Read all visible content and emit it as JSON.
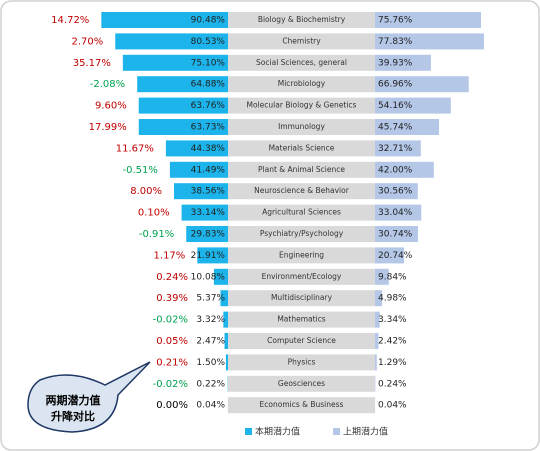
{
  "chart_data": {
    "type": "bar",
    "categories": [
      "Biology & Biochemistry",
      "Chemistry",
      "Social Sciences, general",
      "Microbiology",
      "Molecular Biology & Genetics",
      "Immunology",
      "Materials Science",
      "Plant & Animal Science",
      "Neuroscience & Behavior",
      "Agricultural Sciences",
      "Psychiatry/Psychology",
      "Engineering",
      "Environment/Ecology",
      "Multidisciplinary",
      "Mathematics",
      "Computer Science",
      "Physics",
      "Geosciences",
      "Economics & Business"
    ],
    "series": [
      {
        "name": "本期潜力值",
        "color": "#1cb4ea",
        "values": [
          90.48,
          80.53,
          75.1,
          64.88,
          63.76,
          63.73,
          44.38,
          41.49,
          38.56,
          33.14,
          29.83,
          21.91,
          10.08,
          5.37,
          3.32,
          2.47,
          1.5,
          0.22,
          0.04
        ],
        "value_labels": [
          "90.48%",
          "80.53%",
          "75.10%",
          "64.88%",
          "63.76%",
          "63.73%",
          "44.38%",
          "41.49%",
          "38.56%",
          "33.14%",
          "29.83%",
          "21.91%",
          "10.08%",
          "5.37%",
          "3.32%",
          "2.47%",
          "1.50%",
          "0.22%",
          "0.04%"
        ]
      },
      {
        "name": "上期潜力值",
        "color": "#b4c7e7",
        "values": [
          75.76,
          77.83,
          39.93,
          66.96,
          54.16,
          45.74,
          32.71,
          42.0,
          30.56,
          33.04,
          30.74,
          20.74,
          9.84,
          4.98,
          3.34,
          2.42,
          1.29,
          0.24,
          0.04
        ],
        "value_labels": [
          "75.76%",
          "77.83%",
          "39.93%",
          "66.96%",
          "54.16%",
          "45.74%",
          "32.71%",
          "42.00%",
          "30.56%",
          "33.04%",
          "30.74%",
          "20.74%",
          "9.84%",
          "4.98%",
          "3.34%",
          "2.42%",
          "1.29%",
          "0.24%",
          "0.04%"
        ]
      }
    ],
    "change": {
      "values": [
        14.72,
        2.7,
        35.17,
        -2.08,
        9.6,
        17.99,
        11.67,
        -0.51,
        8.0,
        0.1,
        -0.91,
        1.17,
        0.24,
        0.39,
        -0.02,
        0.05,
        0.21,
        -0.02,
        0.0
      ],
      "value_labels": [
        "14.72%",
        "2.70%",
        "35.17%",
        "-2.08%",
        "9.60%",
        "17.99%",
        "11.67%",
        "-0.51%",
        "8.00%",
        "0.10%",
        "-0.91%",
        "1.17%",
        "0.24%",
        "0.39%",
        "-0.02%",
        "0.05%",
        "0.21%",
        "-0.02%",
        "0.00%"
      ],
      "colors": {
        "up": "#c00000",
        "down": "#00a050",
        "zero": "#000000"
      }
    },
    "xlim": [
      0,
      100
    ],
    "annotation": [
      "两期潜力值",
      "升降对比"
    ]
  }
}
